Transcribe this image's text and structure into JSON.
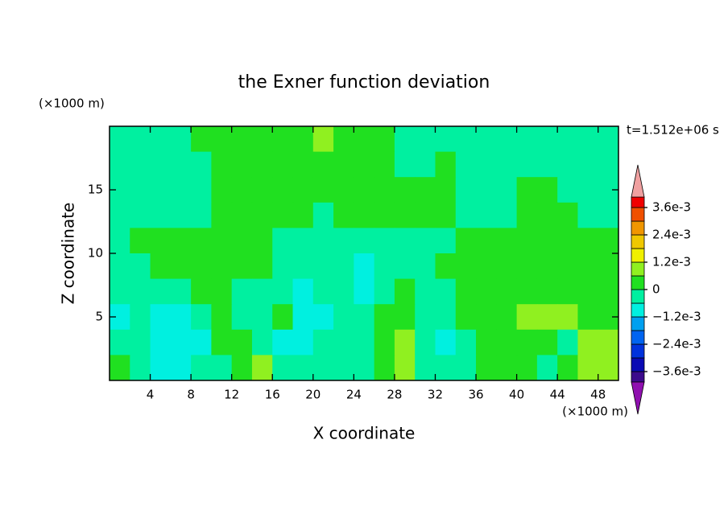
{
  "chart_data": {
    "type": "contour",
    "title": "the Exner function deviation",
    "x_label": "X coordinate",
    "y_label": "Z coordinate",
    "x_unit": "(×1000 m)",
    "y_unit": "(×1000 m)",
    "time_label": "t=1.512e+06 s",
    "xlim": [
      0,
      50
    ],
    "ylim": [
      0,
      20
    ],
    "xticks": [
      4,
      8,
      12,
      16,
      20,
      24,
      28,
      32,
      36,
      40,
      44,
      48
    ],
    "yticks": [
      5,
      10,
      15
    ],
    "x": [
      1,
      3,
      5,
      7,
      9,
      11,
      13,
      15,
      17,
      19,
      21,
      23,
      25,
      27,
      29,
      31,
      33,
      35,
      37,
      39,
      41,
      43,
      45,
      47,
      49
    ],
    "y": [
      19,
      17,
      15,
      13,
      11,
      9,
      7,
      5,
      3,
      1
    ],
    "values": [
      [
        -0.0003,
        -0.0003,
        -0.0003,
        -0.0003,
        0.0003,
        0.0003,
        0.0003,
        0.0003,
        0.0003,
        0.0003,
        0.0009,
        0.0003,
        0.0003,
        0.0003,
        -0.0003,
        -0.0003,
        -0.0003,
        -0.0003,
        -0.0003,
        -0.0003,
        -0.0003,
        -0.0003,
        -0.0003,
        -0.0003,
        -0.0003
      ],
      [
        -0.0003,
        -0.0003,
        -0.0003,
        -0.0003,
        -0.0003,
        0.0003,
        0.0003,
        0.0003,
        0.0003,
        0.0003,
        0.0003,
        0.0003,
        0.0003,
        0.0003,
        -0.0003,
        -0.0003,
        0.0003,
        -0.0003,
        -0.0003,
        -0.0003,
        -0.0003,
        -0.0003,
        -0.0003,
        -0.0003,
        -0.0003
      ],
      [
        -0.0003,
        -0.0003,
        -0.0003,
        -0.0003,
        -0.0003,
        0.0003,
        0.0003,
        0.0003,
        0.0003,
        0.0003,
        0.0003,
        0.0003,
        0.0003,
        0.0003,
        0.0003,
        0.0003,
        0.0003,
        -0.0003,
        -0.0003,
        -0.0003,
        0.0003,
        0.0003,
        -0.0003,
        -0.0003,
        -0.0003
      ],
      [
        -0.0003,
        -0.0003,
        -0.0003,
        -0.0003,
        -0.0003,
        0.0003,
        0.0003,
        0.0003,
        0.0003,
        0.0003,
        -0.0003,
        0.0003,
        0.0003,
        0.0003,
        0.0003,
        0.0003,
        0.0003,
        -0.0003,
        -0.0003,
        -0.0003,
        0.0003,
        0.0003,
        0.0003,
        -0.0003,
        -0.0003
      ],
      [
        -0.0003,
        0.0003,
        0.0003,
        0.0003,
        0.0003,
        0.0003,
        0.0003,
        0.0003,
        -0.0003,
        -0.0003,
        -0.0003,
        -0.0003,
        -0.0003,
        -0.0003,
        -0.0003,
        -0.0003,
        -0.0003,
        0.0003,
        0.0003,
        0.0003,
        0.0003,
        0.0003,
        0.0003,
        0.0003,
        0.0003
      ],
      [
        -0.0003,
        -0.0003,
        0.0003,
        0.0003,
        0.0003,
        0.0003,
        0.0003,
        0.0003,
        -0.0003,
        -0.0003,
        -0.0003,
        -0.0003,
        -0.0009,
        -0.0003,
        -0.0003,
        -0.0003,
        0.0003,
        0.0003,
        0.0003,
        0.0003,
        0.0003,
        0.0003,
        0.0003,
        0.0003,
        0.0003
      ],
      [
        -0.0003,
        -0.0003,
        -0.0003,
        -0.0003,
        0.0003,
        0.0003,
        -0.0003,
        -0.0003,
        -0.0003,
        -0.0009,
        -0.0003,
        -0.0003,
        -0.0009,
        -0.0003,
        0.0003,
        -0.0003,
        -0.0003,
        0.0003,
        0.0003,
        0.0003,
        0.0003,
        0.0003,
        0.0003,
        0.0003,
        0.0003
      ],
      [
        -0.0009,
        -0.0003,
        -0.0009,
        -0.0009,
        -0.0003,
        0.0003,
        -0.0003,
        -0.0003,
        0.0003,
        -0.0009,
        -0.0009,
        -0.0003,
        -0.0003,
        0.0003,
        0.0003,
        -0.0003,
        -0.0003,
        0.0003,
        0.0003,
        0.0003,
        0.0009,
        0.0009,
        0.0009,
        0.0003,
        0.0003
      ],
      [
        -0.0003,
        -0.0003,
        -0.0009,
        -0.0009,
        -0.0009,
        0.0003,
        0.0003,
        -0.0003,
        -0.0009,
        -0.0009,
        -0.0003,
        -0.0003,
        -0.0003,
        0.0003,
        0.0009,
        -0.0003,
        -0.0009,
        -0.0003,
        0.0003,
        0.0003,
        0.0003,
        0.0003,
        -0.0003,
        0.0009,
        0.0009
      ],
      [
        0.0003,
        -0.0003,
        -0.0009,
        -0.0009,
        -0.0003,
        -0.0003,
        0.0003,
        0.0009,
        -0.0003,
        -0.0003,
        -0.0003,
        -0.0003,
        -0.0003,
        0.0003,
        0.0009,
        -0.0003,
        -0.0003,
        -0.0003,
        0.0003,
        0.0003,
        0.0003,
        -0.0003,
        0.0003,
        0.0009,
        0.0009
      ]
    ],
    "levels": [
      -0.0036,
      -0.003,
      -0.0024,
      -0.0018,
      -0.0012,
      -0.0006,
      0,
      0.0006,
      0.0012,
      0.0018,
      0.0024,
      0.003,
      0.0036
    ],
    "colors": [
      "#3c0a8c",
      "#0a0ab4",
      "#0032dc",
      "#0064f0",
      "#00a0f0",
      "#00f0e0",
      "#00f0a0",
      "#20e020",
      "#90f020",
      "#f0f000",
      "#f0c800",
      "#f09600",
      "#f05000",
      "#f00000"
    ],
    "extend_colors": [
      "#9010b0",
      "#f0a0a0"
    ],
    "colorbar_ticks": [
      {
        "value": 0.0036,
        "label": "3.6e-3"
      },
      {
        "value": 0.0024,
        "label": "2.4e-3"
      },
      {
        "value": 0.0012,
        "label": "1.2e-3"
      },
      0,
      {
        "value": -0.0012,
        "label": "−1.2e-3"
      },
      {
        "value": -0.0024,
        "label": "−2.4e-3"
      },
      {
        "value": -0.0036,
        "label": "−3.6e-3"
      }
    ]
  }
}
